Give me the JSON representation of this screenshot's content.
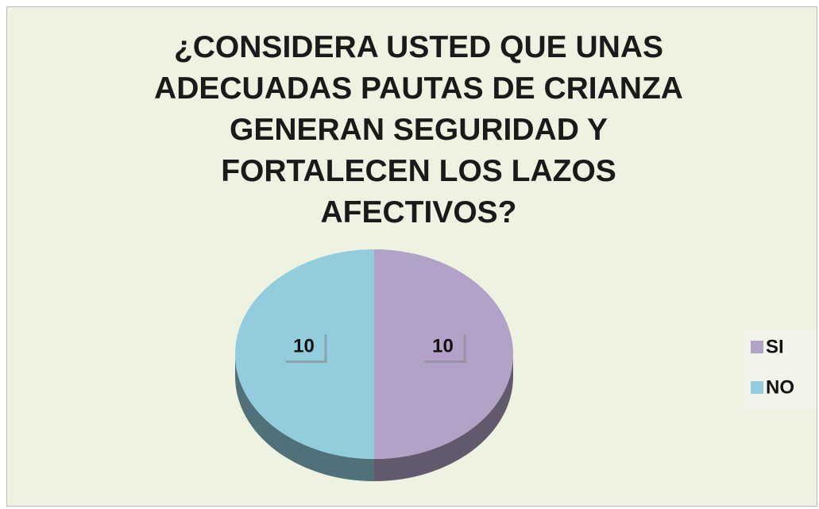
{
  "chart_data": {
    "type": "pie",
    "title": "¿CONSIDERA USTED QUE UNAS ADECUADAS PAUTAS DE CRIANZA GENERAN SEGURIDAD Y FORTALECEN LOS LAZOS AFECTIVOS?",
    "categories": [
      "SI",
      "NO"
    ],
    "values": [
      10,
      10
    ],
    "colors": [
      "#b3a2c7",
      "#93cddd"
    ],
    "legend": "right"
  }
}
